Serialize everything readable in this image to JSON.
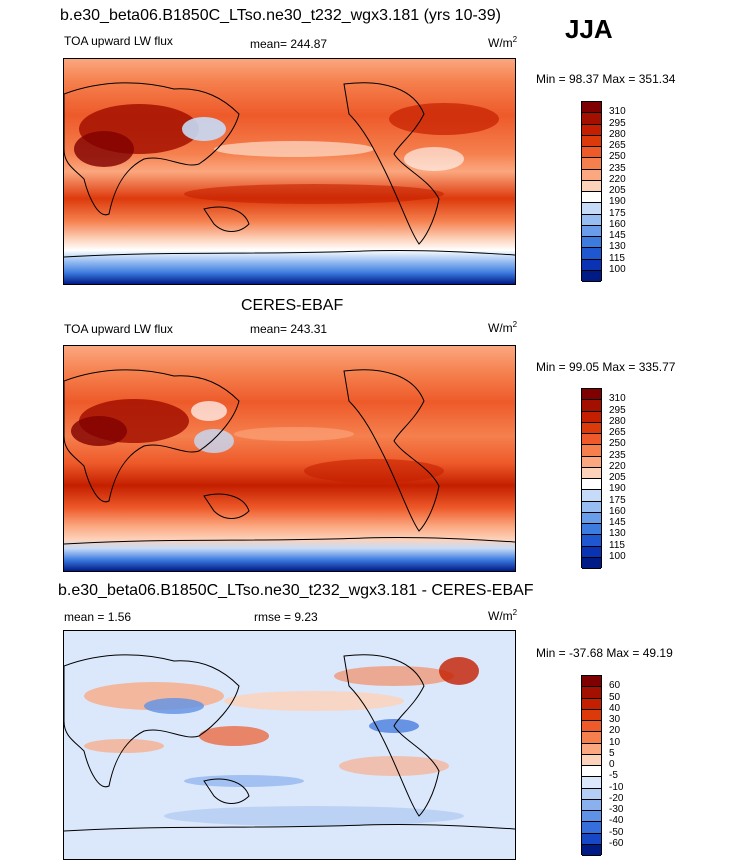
{
  "season": "JJA",
  "panels": [
    {
      "id": "model",
      "title": "b.e30_beta06.B1850C_LTso.ne30_t232_wgx3.181 (yrs 10-39)",
      "left_label": "TOA upward LW flux",
      "stat1": "mean= 244.87",
      "stat2": "",
      "units_main": "W/m",
      "units_sup": "2",
      "minmax": "Min =  98.37 Max = 351.34",
      "colorbar_labels": [
        "310",
        "295",
        "280",
        "265",
        "250",
        "235",
        "220",
        "205",
        "190",
        "175",
        "160",
        "145",
        "130",
        "115",
        "100"
      ],
      "colorbar_colors": [
        "#7f0000",
        "#a31000",
        "#c41f00",
        "#dd3a0c",
        "#ee5a2a",
        "#f5804e",
        "#fba77f",
        "#fdd2bb",
        "#ffffff",
        "#c6dbf7",
        "#97bdf1",
        "#6a9de9",
        "#3d7cdf",
        "#1f57d0",
        "#0a33b3",
        "#001a86"
      ]
    },
    {
      "id": "obs",
      "title": "CERES-EBAF",
      "left_label": "TOA upward LW flux",
      "stat1": "mean= 243.31",
      "stat2": "",
      "units_main": "W/m",
      "units_sup": "2",
      "minmax": "Min =  99.05 Max = 335.77",
      "colorbar_labels": [
        "310",
        "295",
        "280",
        "265",
        "250",
        "235",
        "220",
        "205",
        "190",
        "175",
        "160",
        "145",
        "130",
        "115",
        "100"
      ],
      "colorbar_colors": [
        "#7f0000",
        "#a31000",
        "#c41f00",
        "#dd3a0c",
        "#ee5a2a",
        "#f5804e",
        "#fba77f",
        "#fdd2bb",
        "#ffffff",
        "#c6dbf7",
        "#97bdf1",
        "#6a9de9",
        "#3d7cdf",
        "#1f57d0",
        "#0a33b3",
        "#001a86"
      ]
    },
    {
      "id": "diff",
      "title": "b.e30_beta06.B1850C_LTso.ne30_t232_wgx3.181 - CERES-EBAF",
      "left_label": "mean =   1.56",
      "stat1": "rmse =   9.23",
      "stat2": "",
      "units_main": "W/m",
      "units_sup": "2",
      "minmax": "Min = -37.68 Max =  49.19",
      "colorbar_labels": [
        "60",
        "50",
        "40",
        "30",
        "20",
        "10",
        "5",
        "0",
        "-5",
        "-10",
        "-20",
        "-30",
        "-40",
        "-50",
        "-60"
      ],
      "colorbar_colors": [
        "#7f0000",
        "#a31000",
        "#c41f00",
        "#dd3a0c",
        "#ee5a2a",
        "#f5804e",
        "#fba77f",
        "#fdd2bb",
        "#ffffff",
        "#dbe7fa",
        "#b3cdf4",
        "#8ab1ee",
        "#5f92e6",
        "#366fdb",
        "#1647c4",
        "#001a86"
      ]
    }
  ]
}
